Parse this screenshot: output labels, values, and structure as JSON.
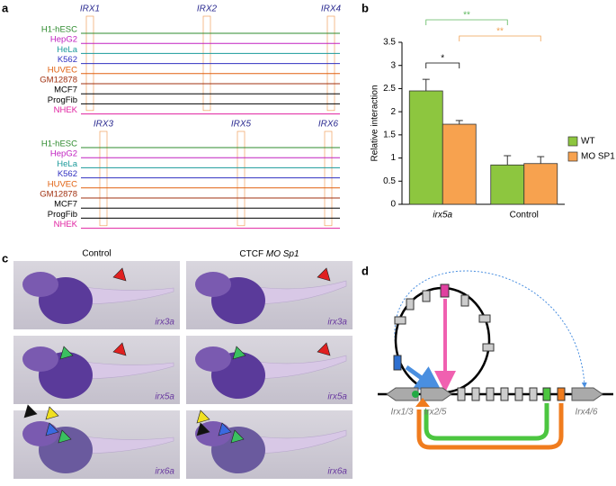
{
  "panel_labels": [
    "a",
    "b",
    "c",
    "d"
  ],
  "panel_a": {
    "tracks": [
      {
        "name": "H1-hESC",
        "color": "#2e8b2e"
      },
      {
        "name": "HepG2",
        "color": "#c020c0"
      },
      {
        "name": "HeLa",
        "color": "#1a9a9a"
      },
      {
        "name": "K562",
        "color": "#3030c0"
      },
      {
        "name": "HUVEC",
        "color": "#e06010"
      },
      {
        "name": "GM12878",
        "color": "#a03010"
      },
      {
        "name": "MCF7",
        "color": "#000000"
      },
      {
        "name": "ProgFib",
        "color": "#000000"
      },
      {
        "name": "NHEK",
        "color": "#e020a0"
      }
    ],
    "groups": [
      {
        "genes": [
          "IRX1",
          "IRX2",
          "IRX4"
        ]
      },
      {
        "genes": [
          "IRX3",
          "IRX5",
          "IRX6"
        ]
      }
    ]
  },
  "chart_data": {
    "type": "bar",
    "ylabel": "Relative interaction",
    "categories": [
      "irx5a",
      "Control"
    ],
    "series": [
      {
        "name": "WT",
        "color": "#8dc63f",
        "values": [
          2.45,
          0.85
        ],
        "errors": [
          0.25,
          0.2
        ]
      },
      {
        "name": "MO SP1",
        "color": "#f7a24f",
        "values": [
          1.73,
          0.88
        ],
        "errors": [
          0.08,
          0.15
        ]
      }
    ],
    "ylim": [
      0,
      3.5
    ],
    "yticks": [
      0,
      0.5,
      1,
      1.5,
      2,
      2.5,
      3,
      3.5
    ],
    "annotations": [
      {
        "text": "*",
        "color": "#000000"
      },
      {
        "text": "**",
        "color": "#5cb85c"
      },
      {
        "text": "**",
        "color": "#f0a050"
      }
    ]
  },
  "panel_c": {
    "columns": [
      {
        "text": "Control"
      },
      {
        "text": "CTCF",
        "italic": "MO Sp1"
      }
    ],
    "rows": [
      "irx3a",
      "irx5a",
      "irx6a"
    ]
  },
  "panel_d": {
    "labels": [
      "Irx1/3",
      "Irx2/5",
      "Irx4/6"
    ]
  }
}
